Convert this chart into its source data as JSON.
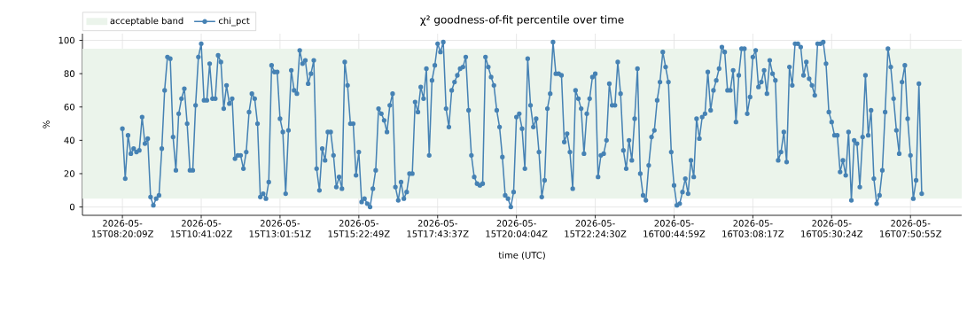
{
  "chart_data": {
    "type": "line",
    "title": "χ² goodness-of-fit percentile over time",
    "xlabel": "time (UTC)",
    "ylabel": "%",
    "categories": [
      "2026-05-15T08:20:09Z",
      null,
      null,
      null,
      null,
      null,
      null,
      null,
      null,
      null,
      null,
      null,
      null,
      null,
      null,
      null,
      null,
      null,
      null,
      null,
      null,
      null,
      null,
      null,
      null,
      null,
      null,
      null,
      "2026-05-15T10:41:02Z",
      null,
      null,
      null,
      null,
      null,
      null,
      null,
      null,
      null,
      null,
      null,
      null,
      null,
      null,
      null,
      null,
      null,
      null,
      null,
      null,
      null,
      null,
      null,
      null,
      null,
      null,
      null,
      "2026-05-15T13:01:51Z",
      null,
      null,
      null,
      null,
      null,
      null,
      null,
      null,
      null,
      null,
      null,
      null,
      null,
      null,
      null,
      null,
      null,
      null,
      null,
      null,
      null,
      null,
      null,
      null,
      null,
      null,
      null,
      "2026-05-15T15:22:49Z",
      null,
      null,
      null,
      null,
      null,
      null,
      null,
      null,
      null,
      null,
      null,
      null,
      null,
      null,
      null,
      null,
      null,
      null,
      null,
      null,
      null,
      null,
      null,
      null,
      null,
      null,
      null,
      "2026-05-15T17:43:37Z",
      null,
      null,
      null,
      null,
      null,
      null,
      null,
      null,
      null,
      null,
      null,
      null,
      null,
      null,
      null,
      null,
      null,
      null,
      null,
      null,
      null,
      null,
      null,
      null,
      null,
      null,
      null,
      "2026-05-15T20:04:04Z",
      null,
      null,
      null,
      null,
      null,
      null,
      null,
      null,
      null,
      null,
      null,
      null,
      null,
      null,
      null,
      null,
      null,
      null,
      null,
      null,
      null,
      null,
      null,
      null,
      null,
      null,
      null,
      "2026-05-15T22:24:30Z",
      null,
      null,
      null,
      null,
      null,
      null,
      null,
      null,
      null,
      null,
      null,
      null,
      null,
      null,
      null,
      null,
      null,
      null,
      null,
      null,
      null,
      null,
      null,
      null,
      null,
      null,
      null,
      "2026-05-16T00:44:59Z",
      null,
      null,
      null,
      null,
      null,
      null,
      null,
      null,
      null,
      null,
      null,
      null,
      null,
      null,
      null,
      null,
      null,
      null,
      null,
      null,
      null,
      null,
      null,
      null,
      null,
      null,
      null,
      "2026-05-16T03:08:17Z",
      null,
      null,
      null,
      null,
      null,
      null,
      null,
      null,
      null,
      null,
      null,
      null,
      null,
      null,
      null,
      null,
      null,
      null,
      null,
      null,
      null,
      null,
      null,
      null,
      null,
      null,
      null,
      "2026-05-16T05:30:24Z",
      null,
      null,
      null,
      null,
      null,
      null,
      null,
      null,
      null,
      null,
      null,
      null,
      null,
      null,
      null,
      null,
      null,
      null,
      null,
      null,
      null,
      null,
      null,
      null,
      null,
      null,
      null,
      "2026-05-16T07:50:55Z",
      null,
      null,
      null,
      null
    ],
    "series": [
      {
        "name": "chi_pct",
        "color": "#4682b4",
        "values": [
          47,
          17,
          43,
          32,
          35,
          33,
          34,
          54,
          38,
          41,
          6,
          1,
          5,
          7,
          35,
          70,
          90,
          89,
          42,
          22,
          56,
          65,
          71,
          50,
          22,
          22,
          61,
          90,
          98,
          64,
          64,
          86,
          65,
          65,
          91,
          87,
          59,
          73,
          62,
          65,
          29,
          31,
          31,
          23,
          33,
          57,
          68,
          65,
          50,
          6,
          8,
          5,
          15,
          85,
          81,
          81,
          53,
          45,
          8,
          46,
          82,
          70,
          68,
          94,
          86,
          88,
          74,
          80,
          88,
          23,
          10,
          35,
          28,
          45,
          45,
          31,
          12,
          18,
          11,
          87,
          73,
          50,
          50,
          19,
          33,
          3,
          5,
          2,
          0,
          11,
          22,
          59,
          56,
          52,
          45,
          61,
          68,
          12,
          4,
          15,
          5,
          9,
          20,
          20,
          63,
          57,
          72,
          65,
          83,
          31,
          76,
          85,
          98,
          93,
          99,
          59,
          48,
          70,
          75,
          79,
          83,
          84,
          90,
          58,
          31,
          18,
          14,
          13,
          14,
          90,
          84,
          78,
          73,
          58,
          48,
          30,
          7,
          5,
          0,
          9,
          54,
          56,
          47,
          23,
          89,
          61,
          48,
          53,
          33,
          6,
          16,
          59,
          68,
          99,
          80,
          80,
          79,
          39,
          44,
          33,
          11,
          70,
          65,
          59,
          32,
          56,
          65,
          78,
          80,
          18,
          31,
          32,
          40,
          74,
          61,
          61,
          87,
          68,
          34,
          23,
          40,
          28,
          53,
          83,
          20,
          7,
          4,
          25,
          42,
          46,
          64,
          75,
          93,
          84,
          75,
          33,
          13,
          1,
          2,
          9,
          17,
          8,
          28,
          18,
          53,
          41,
          54,
          56,
          81,
          58,
          70,
          76,
          83,
          96,
          93,
          70,
          70,
          82,
          51,
          79,
          95,
          95,
          56,
          66,
          90,
          94,
          72,
          75,
          82,
          68,
          88,
          80,
          76,
          28,
          33,
          45,
          27,
          84,
          73,
          98,
          98,
          96,
          79,
          87,
          77,
          73,
          67,
          98,
          98,
          99,
          86,
          57,
          51,
          43,
          43,
          21,
          28,
          19,
          45,
          4,
          40,
          38,
          12,
          42,
          79,
          43,
          58,
          17,
          2,
          7,
          22,
          57,
          95,
          84,
          65,
          46,
          32,
          75,
          85,
          53,
          31,
          5,
          16,
          74,
          8
        ]
      }
    ],
    "bands": [
      {
        "axis": "y",
        "from": 5,
        "to": 95,
        "label": "acceptable band",
        "color": "#ebf4eb"
      }
    ],
    "ylim": [
      -5,
      104
    ],
    "yticks": [
      0,
      20,
      40,
      60,
      80,
      100
    ],
    "grid": true,
    "legend": "top left",
    "marker": "circle"
  }
}
